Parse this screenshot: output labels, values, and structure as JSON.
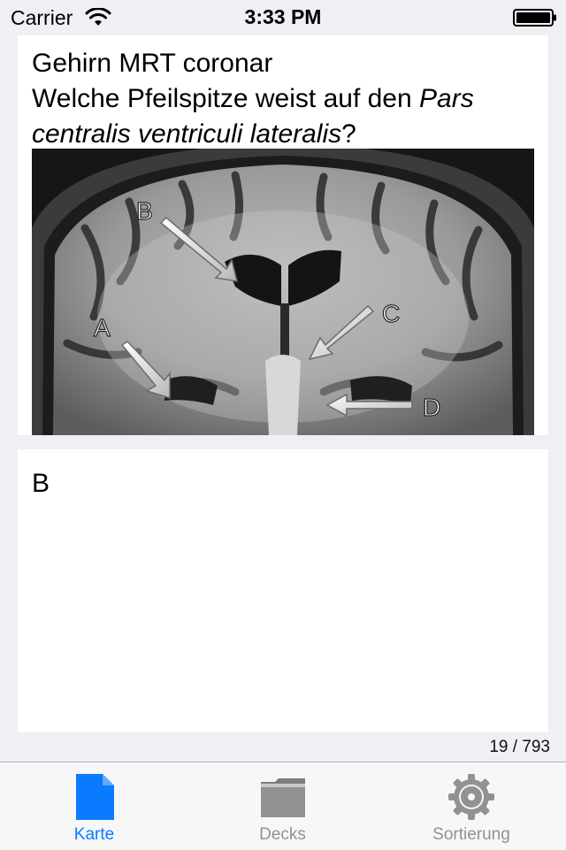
{
  "status_bar": {
    "carrier": "Carrier",
    "time": "3:33 PM"
  },
  "question": {
    "title": "Gehirn MRT coronar",
    "prompt_prefix": "Welche Pfeilspitze weist auf den ",
    "prompt_italic_1": "Pars",
    "prompt_italic_2": "centralis ventriculi lateralis",
    "prompt_suffix": "?",
    "image_labels": {
      "a": "A",
      "b": "B",
      "c": "C",
      "d": "D"
    }
  },
  "answer": {
    "text": "B"
  },
  "counter": "19 / 793",
  "tabs": [
    {
      "label": "Karte",
      "icon": "card-icon",
      "selected": true
    },
    {
      "label": "Decks",
      "icon": "folder-icon",
      "selected": false
    },
    {
      "label": "Sortierung",
      "icon": "gear-icon",
      "selected": false
    }
  ],
  "colors": {
    "accent": "#0a7aff",
    "inactive": "#929292",
    "background": "#efeff4",
    "card": "#ffffff"
  }
}
